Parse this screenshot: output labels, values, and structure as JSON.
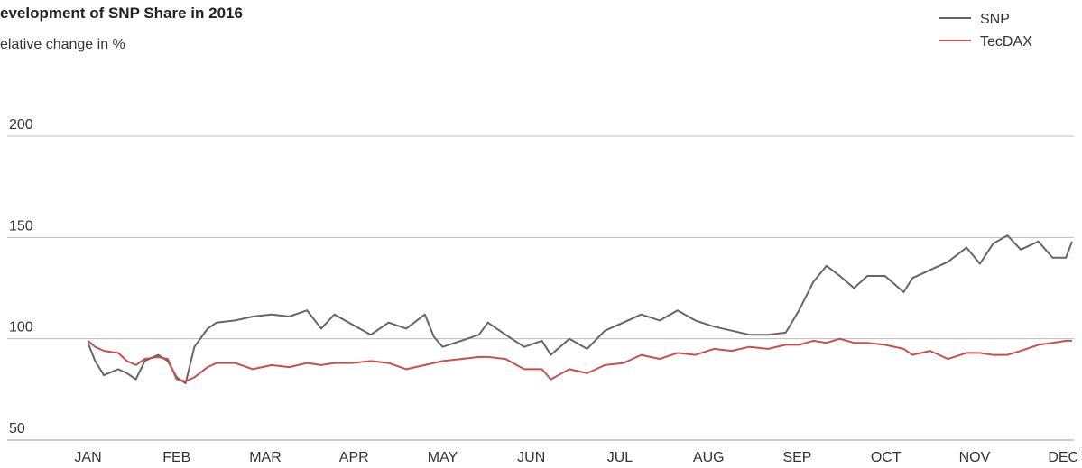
{
  "chart_data": {
    "type": "line",
    "title": "evelopment of SNP Share in 2016",
    "subtitle": "elative change in %",
    "x": [
      0,
      0.08,
      0.18,
      0.34,
      0.44,
      0.54,
      0.64,
      0.79,
      0.9,
      1.0,
      1.1,
      1.2,
      1.35,
      1.45,
      1.66,
      1.86,
      2.07,
      2.27,
      2.47,
      2.63,
      2.78,
      2.98,
      3.19,
      3.39,
      3.59,
      3.8,
      3.9,
      4.0,
      4.21,
      4.41,
      4.51,
      4.71,
      4.92,
      5.12,
      5.22,
      5.43,
      5.63,
      5.83,
      6.04,
      6.24,
      6.45,
      6.65,
      6.85,
      7.06,
      7.26,
      7.46,
      7.67,
      7.87,
      8.02,
      8.18,
      8.33,
      8.48,
      8.64,
      8.79,
      8.99,
      9.2,
      9.3,
      9.5,
      9.7,
      9.91,
      10.06,
      10.21,
      10.37,
      10.52,
      10.72,
      10.88,
      11.03,
      11.1
    ],
    "series": [
      {
        "name": "SNP",
        "color": "#666666",
        "values": [
          98,
          89,
          82,
          85,
          83,
          80,
          89,
          92,
          89,
          81,
          78,
          96,
          105,
          108,
          109,
          111,
          112,
          111,
          114,
          105,
          112,
          107,
          102,
          108,
          105,
          112,
          101,
          96,
          99,
          102,
          108,
          102,
          96,
          99,
          92,
          100,
          95,
          104,
          108,
          112,
          109,
          114,
          109,
          106,
          104,
          102,
          102,
          103,
          114,
          128,
          136,
          131,
          125,
          131,
          131,
          123,
          130,
          134,
          138,
          145,
          137,
          147,
          151,
          144,
          148,
          140,
          140,
          148
        ]
      },
      {
        "name": "TecDAX",
        "color": "#c8504b",
        "values": [
          99,
          96,
          94,
          93,
          89,
          87,
          90,
          91,
          90,
          80,
          79,
          81,
          86,
          88,
          88,
          85,
          87,
          86,
          88,
          87,
          88,
          88,
          89,
          88,
          85,
          87,
          88,
          89,
          90,
          91,
          91,
          90,
          85,
          85,
          80,
          85,
          83,
          87,
          88,
          92,
          90,
          93,
          92,
          95,
          94,
          96,
          95,
          97,
          97,
          99,
          98,
          100,
          98,
          98,
          97,
          95,
          92,
          94,
          90,
          93,
          93,
          92,
          92,
          94,
          97,
          98,
          99,
          99
        ]
      }
    ],
    "xlim": [
      -0.28,
      11.12
    ],
    "xticks": [
      {
        "value": 0,
        "label": "JAN"
      },
      {
        "value": 1,
        "label": "FEB"
      },
      {
        "value": 2,
        "label": "MAR"
      },
      {
        "value": 3,
        "label": "APR"
      },
      {
        "value": 4,
        "label": "MAY"
      },
      {
        "value": 5,
        "label": "JUN"
      },
      {
        "value": 6,
        "label": "JUL"
      },
      {
        "value": 7,
        "label": "AUG"
      },
      {
        "value": 8,
        "label": "SEP"
      },
      {
        "value": 9,
        "label": "OCT"
      },
      {
        "value": 10,
        "label": "NOV"
      },
      {
        "value": 11,
        "label": "DEC"
      }
    ],
    "ylim": [
      50,
      200
    ],
    "yticks": [
      50,
      100,
      150,
      200
    ],
    "grid": true,
    "legend": "top-right"
  }
}
